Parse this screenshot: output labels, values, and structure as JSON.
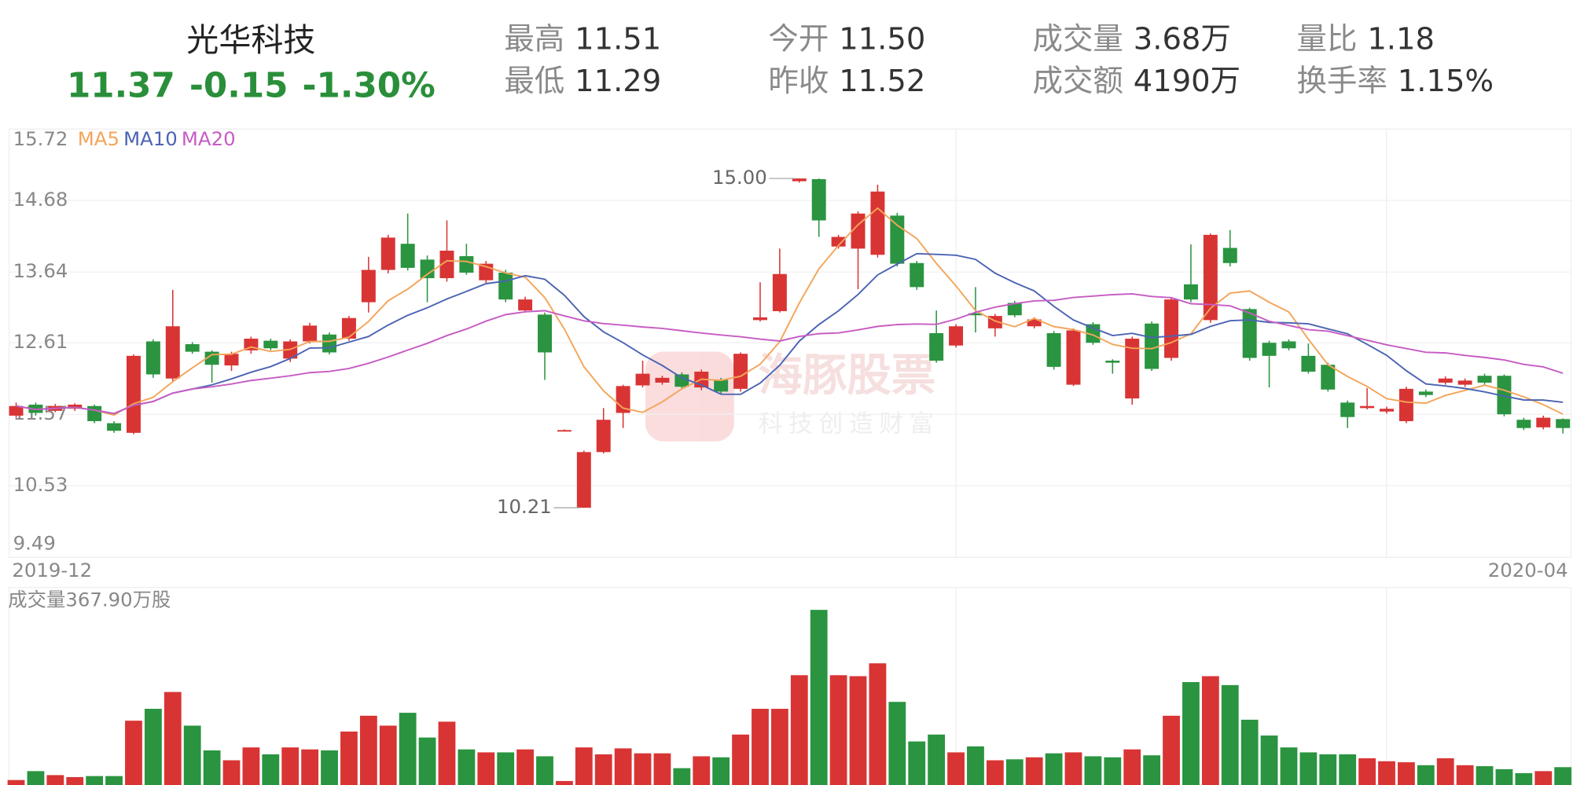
{
  "header": {
    "title": "光华科技",
    "price": "11.37",
    "change": "-0.15",
    "change_pct": "-1.30%",
    "stats": [
      {
        "label": "最高",
        "value": "11.51"
      },
      {
        "label": "今开",
        "value": "11.50"
      },
      {
        "label": "成交量",
        "value": "3.68万"
      },
      {
        "label": "量比",
        "value": "1.18"
      },
      {
        "label": "最低",
        "value": "11.29"
      },
      {
        "label": "昨收",
        "value": "11.52"
      },
      {
        "label": "成交额",
        "value": "4190万"
      },
      {
        "label": "换手率",
        "value": "1.15%"
      }
    ]
  },
  "watermark": {
    "name": "海豚股票",
    "slogan": "科技创造财富"
  },
  "chart_data": {
    "type": "candlestick",
    "ylim": [
      9.49,
      15.72
    ],
    "yticks": [
      15.72,
      14.68,
      13.64,
      12.61,
      11.57,
      10.53,
      9.49
    ],
    "x_labels": [
      "2019-12",
      "2020-04"
    ],
    "up_color": "#d93434",
    "down_color": "#2a9440",
    "open": [
      11.55,
      11.71,
      11.62,
      11.65,
      11.69,
      11.44,
      11.3,
      12.63,
      12.09,
      12.59,
      12.48,
      12.28,
      12.5,
      12.64,
      12.38,
      12.63,
      12.73,
      12.67,
      13.2,
      13.67,
      14.05,
      13.82,
      13.55,
      13.87,
      13.52,
      13.63,
      13.08,
      13.02,
      11.34,
      10.21,
      11.02,
      11.59,
      11.99,
      12.03,
      12.15,
      11.96,
      12.07,
      11.94,
      12.94,
      13.07,
      14.96,
      14.99,
      14.01,
      13.98,
      13.89,
      14.46,
      13.77,
      12.75,
      12.57,
      13.04,
      12.82,
      13.19,
      12.85,
      12.75,
      12.0,
      12.88,
      12.35,
      11.8,
      12.89,
      12.39,
      13.46,
      12.94,
      13.99,
      13.1,
      12.61,
      12.63,
      12.42,
      12.29,
      11.74,
      11.66,
      11.61,
      11.47,
      11.9,
      12.03,
      12.0,
      12.13,
      12.13,
      11.49,
      11.38,
      11.5
    ],
    "high": [
      11.74,
      11.74,
      11.72,
      11.73,
      11.71,
      11.47,
      12.44,
      12.66,
      13.38,
      12.62,
      12.5,
      12.48,
      12.7,
      12.67,
      12.66,
      12.9,
      12.76,
      13.0,
      13.86,
      14.18,
      14.49,
      13.88,
      14.39,
      14.05,
      13.8,
      13.67,
      13.28,
      13.05,
      11.35,
      11.04,
      11.66,
      12.0,
      12.35,
      12.13,
      12.18,
      12.22,
      12.1,
      12.47,
      13.49,
      13.98,
      15.0,
      15.0,
      14.18,
      14.52,
      14.91,
      14.5,
      13.8,
      13.08,
      12.88,
      13.42,
      13.03,
      13.22,
      12.98,
      12.78,
      12.82,
      12.91,
      12.37,
      12.7,
      12.92,
      13.27,
      14.04,
      14.2,
      14.25,
      13.12,
      12.64,
      12.66,
      12.6,
      12.32,
      11.77,
      11.95,
      11.68,
      11.97,
      11.93,
      12.12,
      12.09,
      12.16,
      12.15,
      11.52,
      11.55,
      11.51
    ],
    "low": [
      11.52,
      11.55,
      11.6,
      11.62,
      11.44,
      11.3,
      11.28,
      12.1,
      12.05,
      12.45,
      12.03,
      12.2,
      12.45,
      12.5,
      12.33,
      12.6,
      12.44,
      12.64,
      13.05,
      13.62,
      13.66,
      13.2,
      13.5,
      13.6,
      13.48,
      13.2,
      13.05,
      12.07,
      11.33,
      10.21,
      11.0,
      11.37,
      11.96,
      12.0,
      11.94,
      11.92,
      11.86,
      11.9,
      12.92,
      13.05,
      14.94,
      14.15,
      13.98,
      13.39,
      13.85,
      13.72,
      13.38,
      12.32,
      12.54,
      12.76,
      12.7,
      12.98,
      12.82,
      12.22,
      11.98,
      12.58,
      12.16,
      11.71,
      12.2,
      12.35,
      13.2,
      12.9,
      13.72,
      12.35,
      11.96,
      12.5,
      12.16,
      11.9,
      11.37,
      11.64,
      11.58,
      11.44,
      11.82,
      12.0,
      11.97,
      12.0,
      11.54,
      11.34,
      11.35,
      11.29
    ],
    "close": [
      11.69,
      11.59,
      11.69,
      11.71,
      11.47,
      11.33,
      12.42,
      12.15,
      12.85,
      12.48,
      12.29,
      12.45,
      12.67,
      12.53,
      12.63,
      12.86,
      12.47,
      12.97,
      13.67,
      14.14,
      13.7,
      13.55,
      13.95,
      13.63,
      13.76,
      13.24,
      13.24,
      12.47,
      11.34,
      11.02,
      11.49,
      11.98,
      12.16,
      12.1,
      11.97,
      12.19,
      11.9,
      12.45,
      12.98,
      13.61,
      15.0,
      14.39,
      14.15,
      14.49,
      14.81,
      13.76,
      13.42,
      12.35,
      12.85,
      13.01,
      13.0,
      13.01,
      12.95,
      12.26,
      12.79,
      12.61,
      12.32,
      12.67,
      12.23,
      13.24,
      13.24,
      14.18,
      13.77,
      12.39,
      12.42,
      12.53,
      12.19,
      11.93,
      11.53,
      11.69,
      11.65,
      11.94,
      11.85,
      12.09,
      12.06,
      12.03,
      11.57,
      11.37,
      11.52,
      11.37
    ],
    "volume_label": "成交量367.90万股",
    "volume": [
      102,
      286,
      204,
      163,
      184,
      184,
      1326,
      1571,
      1918,
      1224,
      714,
      510,
      775,
      632,
      775,
      734,
      714,
      1102,
      1428,
      1224,
      1489,
      979,
      1306,
      734,
      673,
      673,
      734,
      592,
      82,
      775,
      632,
      755,
      653,
      653,
      347,
      592,
      571,
      1040,
      1571,
      1571,
      2264,
      3611,
      2264,
      2244,
      2509,
      1714,
      898,
      1040,
      673,
      796,
      510,
      530,
      571,
      653,
      673,
      592,
      571,
      734,
      612,
      1428,
      2122,
      2244,
      2060,
      1346,
      1020,
      775,
      673,
      632,
      632,
      551,
      490,
      469,
      408,
      551,
      408,
      388,
      326,
      245,
      286,
      367.9
    ],
    "series": [
      {
        "name": "MA5",
        "color": "#f3a55a"
      },
      {
        "name": "MA10",
        "color": "#4b64b3"
      },
      {
        "name": "MA20",
        "color": "#c65cc3"
      }
    ],
    "annotations": [
      {
        "value": 15.0,
        "label": "15.00"
      },
      {
        "value": 10.21,
        "label": "10.21"
      }
    ]
  }
}
